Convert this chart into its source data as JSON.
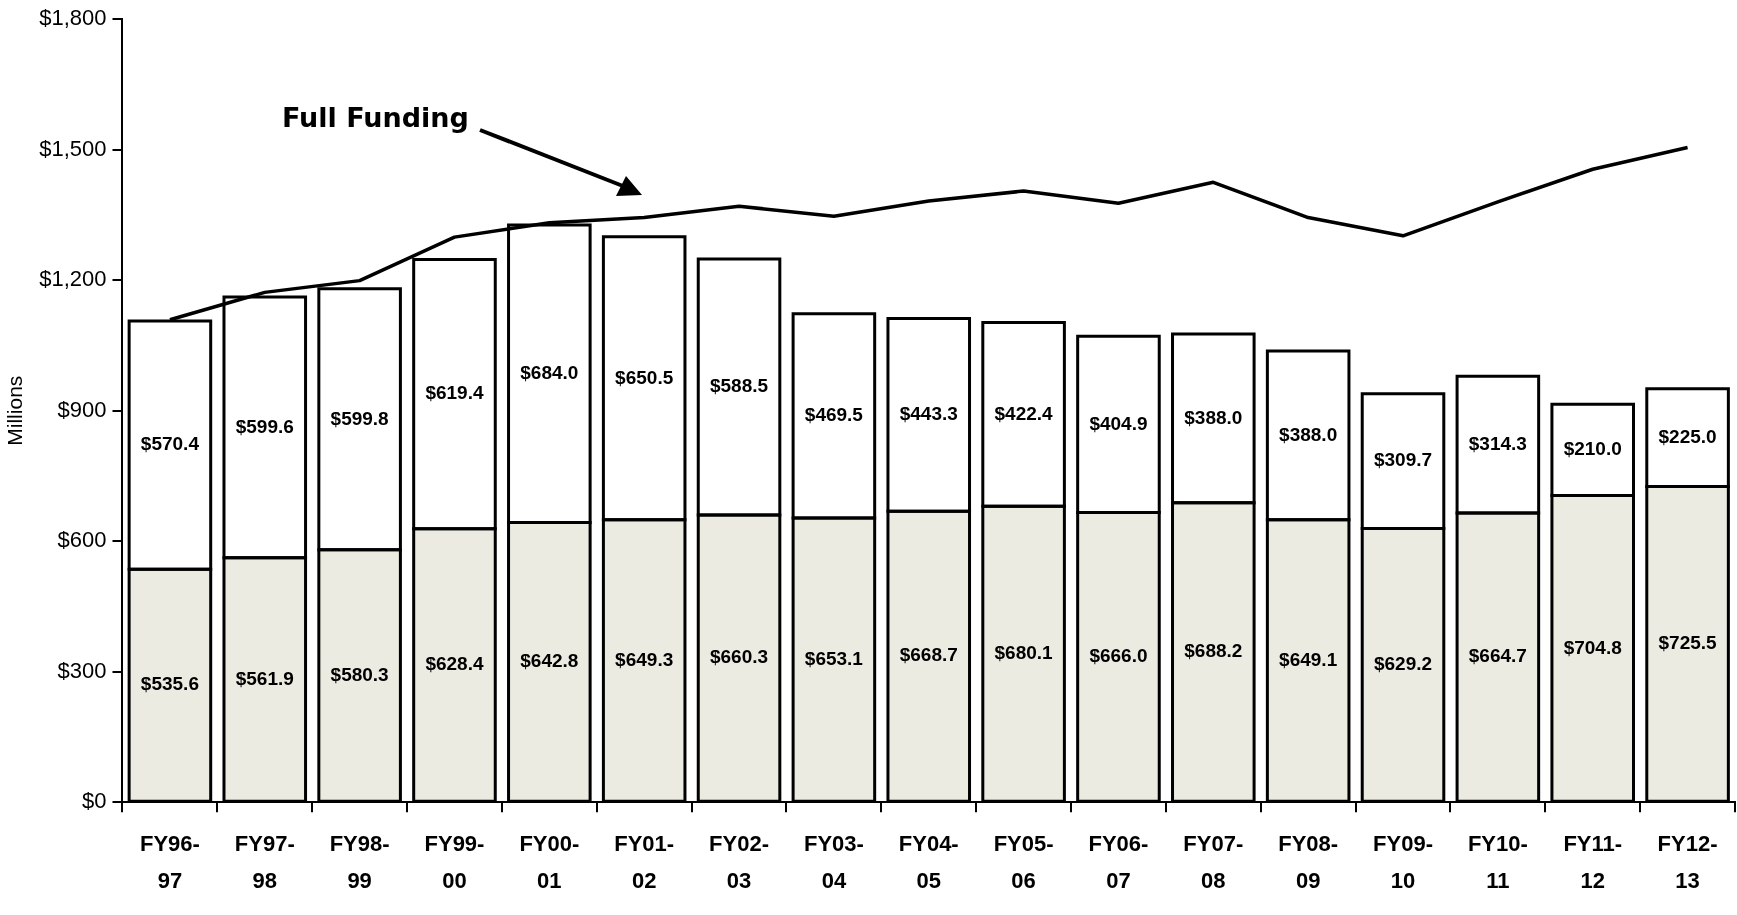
{
  "chart_data": {
    "type": "bar",
    "stacked": true,
    "ylabel": "Millions",
    "annotations": [
      "Full Funding"
    ],
    "categories": [
      "FY96-97",
      "FY97-98",
      "FY98-99",
      "FY99-00",
      "FY00-01",
      "FY01-02",
      "FY02-03",
      "FY03-04",
      "FY04-05",
      "FY05-06",
      "FY06-07",
      "FY07-08",
      "FY08-09",
      "FY09-10",
      "FY10-11",
      "FY11-12",
      "FY12-13"
    ],
    "series": [
      {
        "color": "#ecebe1",
        "values": [
          535.6,
          561.9,
          580.3,
          628.4,
          642.8,
          649.3,
          660.3,
          653.1,
          668.7,
          680.1,
          666.0,
          688.2,
          649.1,
          629.2,
          664.7,
          704.8,
          725.5
        ],
        "value_labels": [
          "$535.6",
          "$561.9",
          "$580.3",
          "$628.4",
          "$642.8",
          "$649.3",
          "$660.3",
          "$653.1",
          "$668.7",
          "$680.1",
          "$666.0",
          "$688.2",
          "$649.1",
          "$629.2",
          "$664.7",
          "$704.8",
          "$725.5"
        ]
      },
      {
        "color": "#ffffff",
        "values": [
          570.4,
          599.6,
          599.8,
          619.4,
          684.0,
          650.5,
          588.5,
          469.5,
          443.3,
          422.4,
          404.9,
          388.0,
          388.0,
          309.7,
          314.3,
          210.0,
          225.0
        ],
        "value_labels": [
          "$570.4",
          "$599.6",
          "$599.8",
          "$619.4",
          "$684.0",
          "$650.5",
          "$588.5",
          "$469.5",
          "$443.3",
          "$422.4",
          "$404.9",
          "$388.0",
          "$388.0",
          "$309.7",
          "$314.3",
          "$210.0",
          "$225.0"
        ]
      },
      {
        "type": "line",
        "color": "#000000",
        "values": [
          1109,
          1172,
          1199,
          1299,
          1332,
          1344,
          1370,
          1347,
          1382,
          1405,
          1377,
          1425,
          1344,
          1302,
          1380,
          1455,
          1505
        ]
      }
    ],
    "ylim": [
      0,
      1800
    ],
    "yticks": [
      {
        "value": 0,
        "label": "$0"
      },
      {
        "value": 300,
        "label": "$300"
      },
      {
        "value": 600,
        "label": "$600"
      },
      {
        "value": 900,
        "label": "$900"
      },
      {
        "value": 1200,
        "label": "$1,200"
      },
      {
        "value": 1500,
        "label": "$1,500"
      },
      {
        "value": 1800,
        "label": "$1,800"
      }
    ],
    "grid": false,
    "legend": false,
    "marker": "none",
    "line_style": "solid"
  }
}
